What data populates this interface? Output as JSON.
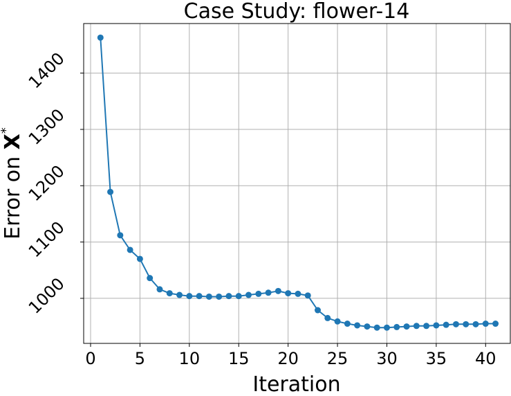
{
  "chart_data": {
    "type": "line",
    "title": "Case Study: flower-14",
    "xlabel": "Iteration",
    "ylabel": "Error on ",
    "ylabel_bold": "X",
    "ylabel_sup": "*",
    "xlim": [
      -0.7,
      42.5
    ],
    "ylim": [
      920,
      1488
    ],
    "xticks": [
      0,
      5,
      10,
      15,
      20,
      25,
      30,
      35,
      40
    ],
    "yticks": [
      1000,
      1100,
      1200,
      1300,
      1400
    ],
    "xtick_labels": [
      "0",
      "5",
      "10",
      "15",
      "20",
      "25",
      "30",
      "35",
      "40"
    ],
    "ytick_labels": [
      "1000",
      "1100",
      "1200",
      "1300",
      "1400"
    ],
    "grid": true,
    "series": [
      {
        "color": "#1f77b4",
        "x": [
          1,
          2,
          3,
          4,
          5,
          6,
          7,
          8,
          9,
          10,
          11,
          12,
          13,
          14,
          15,
          16,
          17,
          18,
          19,
          20,
          21,
          22,
          23,
          24,
          25,
          26,
          27,
          28,
          29,
          30,
          31,
          32,
          33,
          34,
          35,
          36,
          37,
          38,
          39,
          40,
          41
        ],
        "y": [
          1463,
          1189,
          1112,
          1086,
          1070,
          1036,
          1016,
          1009,
          1006,
          1004,
          1004,
          1003,
          1003,
          1004,
          1004,
          1006,
          1008,
          1010,
          1013,
          1009,
          1008,
          1005,
          979,
          965,
          959,
          955,
          952,
          950,
          948,
          948,
          949,
          950,
          951,
          951,
          952,
          953,
          954,
          954,
          954,
          955,
          955
        ]
      }
    ]
  }
}
